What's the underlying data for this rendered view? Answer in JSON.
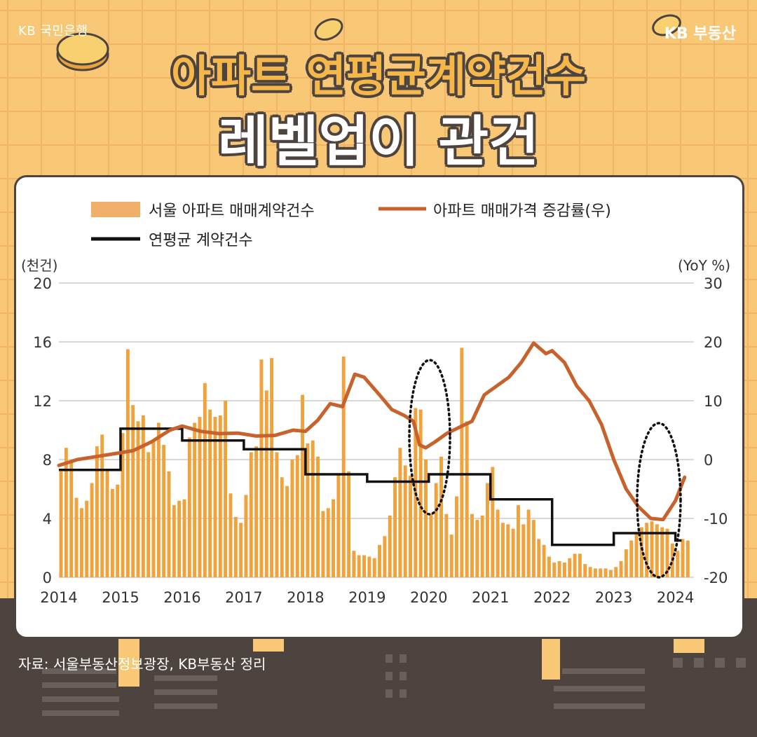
{
  "brand": {
    "left": "KB 국민은행",
    "right": "KB 부동산"
  },
  "title": {
    "line1": "아파트 연평균계약건수",
    "line2": "레벨업이 관건"
  },
  "source": "자료: 서울부동산정보광장, KB부동산 정리",
  "colors": {
    "bars": "#f0a23c",
    "price_line": "#c8622d",
    "avg_line": "#111111",
    "grid": "#d8d8d8"
  },
  "chart_data": {
    "type": "bar",
    "legend": {
      "bars": "서울 아파트 매매계약건수",
      "price": "아파트 매매가격 증감률(우)",
      "avg": "연평균 계약건수"
    },
    "ylabel_left": "(천건)",
    "ylabel_right": "(YoY %)",
    "ylim_left": [
      0,
      20
    ],
    "ylim_right": [
      -20,
      30
    ],
    "yticks_left": [
      "0",
      "4",
      "8",
      "12",
      "16",
      "20"
    ],
    "yticks_right": [
      "-20",
      "-10",
      "0",
      "10",
      "20",
      "30"
    ],
    "xticks": [
      "2014",
      "2015",
      "2016",
      "2017",
      "2018",
      "2019",
      "2020",
      "2021",
      "2022",
      "2023",
      "2024"
    ],
    "x_start": 2014,
    "series": [
      {
        "name": "서울 아파트 매매계약건수",
        "type": "bar",
        "values": [
          7.2,
          8.8,
          7.9,
          5.4,
          4.7,
          5.2,
          6.4,
          8.9,
          9.7,
          7.3,
          6.0,
          6.3,
          9.8,
          15.5,
          11.7,
          10.6,
          11.0,
          8.5,
          9.3,
          10.5,
          9.0,
          7.2,
          4.9,
          5.2,
          5.3,
          9.5,
          10.5,
          10.9,
          13.2,
          11.4,
          10.9,
          11.0,
          12.0,
          5.7,
          4.1,
          3.7,
          5.6,
          8.5,
          8.9,
          14.8,
          12.7,
          14.9,
          8.5,
          6.8,
          6.2,
          8.0,
          8.3,
          12.4,
          9.1,
          9.3,
          8.2,
          4.5,
          4.7,
          5.3,
          7.0,
          15.0,
          7.2,
          1.8,
          1.5,
          1.5,
          1.4,
          1.3,
          2.2,
          2.8,
          4.2,
          6.8,
          8.8,
          7.6,
          6.9,
          11.5,
          11.4,
          8.0,
          4.3,
          6.4,
          8.2,
          4.3,
          2.9,
          5.5,
          15.6,
          10.6,
          4.3,
          3.9,
          4.2,
          6.4,
          7.5,
          4.6,
          3.7,
          3.6,
          3.3,
          4.9,
          3.6,
          4.6,
          3.9,
          2.6,
          2.2,
          1.4,
          1.0,
          1.1,
          1.0,
          1.3,
          1.6,
          1.6,
          0.9,
          0.7,
          0.6,
          0.6,
          0.6,
          0.5,
          0.7,
          1.1,
          1.9,
          2.5,
          3.0,
          3.4,
          3.7,
          3.8,
          3.6,
          3.4,
          3.3,
          2.3,
          1.8,
          2.6,
          2.5
        ]
      },
      {
        "name": "아파트 매매가격 증감률(우)",
        "type": "line",
        "points": [
          [
            2014.0,
            -1.0
          ],
          [
            2014.3,
            0.0
          ],
          [
            2014.6,
            0.5
          ],
          [
            2014.9,
            1.0
          ],
          [
            2015.2,
            1.5
          ],
          [
            2015.5,
            3.0
          ],
          [
            2015.8,
            5.0
          ],
          [
            2016.0,
            5.7
          ],
          [
            2016.3,
            4.8
          ],
          [
            2016.6,
            4.4
          ],
          [
            2016.9,
            4.5
          ],
          [
            2017.2,
            4.0
          ],
          [
            2017.5,
            4.1
          ],
          [
            2017.8,
            5.0
          ],
          [
            2018.0,
            4.8
          ],
          [
            2018.2,
            6.7
          ],
          [
            2018.4,
            9.5
          ],
          [
            2018.6,
            9.0
          ],
          [
            2018.8,
            14.5
          ],
          [
            2018.95,
            14.0
          ],
          [
            2019.2,
            11.0
          ],
          [
            2019.4,
            8.5
          ],
          [
            2019.6,
            7.5
          ],
          [
            2019.75,
            6.5
          ],
          [
            2019.85,
            2.5
          ],
          [
            2019.95,
            2.0
          ],
          [
            2020.1,
            3.0
          ],
          [
            2020.3,
            4.5
          ],
          [
            2020.5,
            5.5
          ],
          [
            2020.7,
            6.5
          ],
          [
            2020.9,
            11.0
          ],
          [
            2021.1,
            12.5
          ],
          [
            2021.3,
            14.0
          ],
          [
            2021.5,
            16.5
          ],
          [
            2021.7,
            19.8
          ],
          [
            2021.9,
            18.0
          ],
          [
            2022.0,
            18.5
          ],
          [
            2022.2,
            16.5
          ],
          [
            2022.4,
            12.5
          ],
          [
            2022.6,
            10.0
          ],
          [
            2022.8,
            6.0
          ],
          [
            2023.0,
            0.0
          ],
          [
            2023.2,
            -5.0
          ],
          [
            2023.4,
            -8.0
          ],
          [
            2023.6,
            -10.0
          ],
          [
            2023.8,
            -10.2
          ],
          [
            2024.0,
            -7.0
          ],
          [
            2024.15,
            -3.0
          ]
        ]
      },
      {
        "name": "연평균 계약건수",
        "type": "step",
        "values": [
          {
            "year": "2014",
            "value": 7.3
          },
          {
            "year": "2015",
            "value": 10.1
          },
          {
            "year": "2016",
            "value": 9.3
          },
          {
            "year": "2017",
            "value": 8.7
          },
          {
            "year": "2018",
            "value": 7.0
          },
          {
            "year": "2019",
            "value": 6.5
          },
          {
            "year": "2020",
            "value": 7.0
          },
          {
            "year": "2021",
            "value": 5.3
          },
          {
            "year": "2022",
            "value": 2.2
          },
          {
            "year": "2023",
            "value": 3.0
          },
          {
            "year": "2024",
            "value": 2.5
          }
        ]
      }
    ],
    "annotations": [
      "dotted-ellipse 2019 low",
      "dotted-ellipse 2023 low"
    ],
    "grid": true
  }
}
